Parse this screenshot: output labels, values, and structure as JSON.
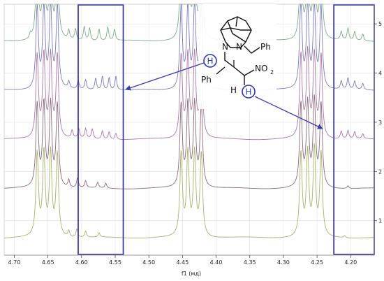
{
  "chart_data": {
    "type": "line",
    "title": "",
    "xlabel": "f1 (мд)",
    "ylabel": "",
    "x_reversed": true,
    "xlim": [
      4.165,
      4.715
    ],
    "ylim_offset_units": [
      0.3,
      5.4
    ],
    "x_ticks": [
      "4.70",
      "4.65",
      "4.60",
      "4.55",
      "4.50",
      "4.45",
      "4.40",
      "4.35",
      "4.30",
      "4.25",
      "4.20"
    ],
    "y_ticks": [
      "5",
      "4",
      "3",
      "2",
      "1"
    ],
    "grid": true,
    "stacked": true,
    "series": [
      {
        "trace": 5,
        "color": "#7faa88",
        "peaks": [
          [
            4.676,
            0.35
          ],
          [
            4.666,
            0.55
          ],
          [
            4.619,
            0.65
          ],
          [
            4.609,
            0.8
          ],
          [
            4.596,
            1.0
          ],
          [
            4.588,
            0.9
          ],
          [
            4.574,
            0.85
          ],
          [
            4.561,
            1.0
          ],
          [
            4.551,
            0.8
          ],
          [
            4.448,
            0.9
          ],
          [
            4.439,
            0.7
          ],
          [
            4.276,
            0.6
          ],
          [
            4.214,
            0.6
          ],
          [
            4.204,
            0.85
          ],
          [
            4.194,
            0.65
          ],
          [
            4.182,
            0.5
          ]
        ]
      },
      {
        "trace": 4,
        "color": "#7a7ab8",
        "peaks": [
          [
            4.619,
            0.5
          ],
          [
            4.605,
            0.6
          ],
          [
            4.594,
            0.7
          ],
          [
            4.579,
            0.85
          ],
          [
            4.569,
            1.0
          ],
          [
            4.559,
            0.9
          ],
          [
            4.549,
            1.0
          ],
          [
            4.275,
            0.45
          ],
          [
            4.214,
            0.6
          ],
          [
            4.204,
            0.8
          ],
          [
            4.194,
            0.6
          ],
          [
            4.182,
            0.45
          ]
        ]
      },
      {
        "trace": 3,
        "color": "#a878a8",
        "peaks": [
          [
            4.614,
            0.55
          ],
          [
            4.604,
            0.65
          ],
          [
            4.594,
            0.7
          ],
          [
            4.584,
            0.7
          ],
          [
            4.569,
            0.6
          ],
          [
            4.559,
            0.55
          ],
          [
            4.549,
            0.45
          ],
          [
            4.262,
            0.35
          ],
          [
            4.214,
            0.55
          ],
          [
            4.204,
            0.6
          ],
          [
            4.194,
            0.5
          ],
          [
            4.182,
            0.35
          ]
        ]
      },
      {
        "trace": 2,
        "color": "#8a6a78",
        "peaks": [
          [
            4.619,
            0.55
          ],
          [
            4.606,
            0.7
          ],
          [
            4.594,
            0.5
          ],
          [
            4.576,
            0.4
          ],
          [
            4.564,
            0.35
          ],
          [
            4.254,
            0.25
          ],
          [
            4.204,
            0.2
          ]
        ]
      },
      {
        "trace": 1,
        "color": "#a8b070",
        "peaks": [
          [
            4.619,
            0.45
          ],
          [
            4.607,
            0.6
          ],
          [
            4.594,
            0.45
          ],
          [
            4.574,
            0.3
          ],
          [
            4.254,
            0.25
          ],
          [
            4.209,
            0.15
          ]
        ]
      }
    ],
    "large_multiplets_ppm": [
      4.666,
      4.656,
      4.646,
      4.636,
      4.452,
      4.442,
      4.432,
      4.422,
      4.274,
      4.264,
      4.254,
      4.244
    ],
    "highlight_boxes_ppm": [
      [
        4.538,
        4.605
      ],
      [
        4.165,
        4.225
      ]
    ],
    "highlight_color": "#3a3aa8",
    "structure": {
      "atom_labels": [
        "N",
        "N",
        "Ph",
        "Ph",
        "H",
        "H",
        "NO"
      ],
      "nitro_subscript": "2"
    }
  }
}
